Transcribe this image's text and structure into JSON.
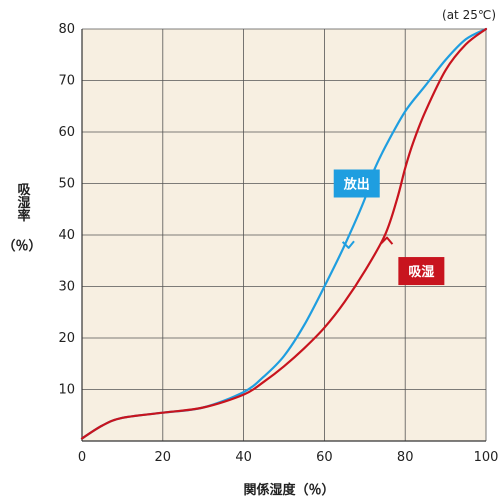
{
  "chart_data": {
    "type": "line",
    "annotation": "(at 25℃)",
    "xlabel": "関係湿度（％）",
    "ylabel_lines": [
      "吸湿率",
      "（％）"
    ],
    "xlim": [
      0,
      100
    ],
    "ylim": [
      0,
      80
    ],
    "xticks": [
      0,
      20,
      40,
      60,
      80,
      100
    ],
    "yticks": [
      10,
      20,
      30,
      40,
      50,
      60,
      70,
      80
    ],
    "grid": true,
    "plot_background": "#f7efe1",
    "series": [
      {
        "name": "放出",
        "color": "#1f9ee0",
        "direction": "desorption",
        "points": [
          [
            0,
            0.5
          ],
          [
            5,
            3
          ],
          [
            10,
            4.5
          ],
          [
            20,
            5.5
          ],
          [
            30,
            6.5
          ],
          [
            40,
            9.5
          ],
          [
            45,
            12.5
          ],
          [
            50,
            16.5
          ],
          [
            55,
            22.5
          ],
          [
            60,
            30
          ],
          [
            65,
            38
          ],
          [
            70,
            47
          ],
          [
            72,
            52
          ],
          [
            75,
            57
          ],
          [
            80,
            64
          ],
          [
            85,
            69
          ],
          [
            90,
            74
          ],
          [
            95,
            78
          ],
          [
            100,
            80
          ]
        ]
      },
      {
        "name": "吸湿",
        "color": "#c8141e",
        "direction": "adsorption",
        "points": [
          [
            0,
            0.5
          ],
          [
            5,
            3
          ],
          [
            10,
            4.5
          ],
          [
            20,
            5.5
          ],
          [
            30,
            6.5
          ],
          [
            40,
            9
          ],
          [
            45,
            11.5
          ],
          [
            50,
            14.5
          ],
          [
            55,
            18
          ],
          [
            60,
            22
          ],
          [
            65,
            27
          ],
          [
            70,
            33
          ],
          [
            75,
            40
          ],
          [
            78,
            47
          ],
          [
            80,
            53
          ],
          [
            82,
            58
          ],
          [
            85,
            64
          ],
          [
            90,
            72
          ],
          [
            95,
            77
          ],
          [
            100,
            80
          ]
        ]
      }
    ]
  }
}
